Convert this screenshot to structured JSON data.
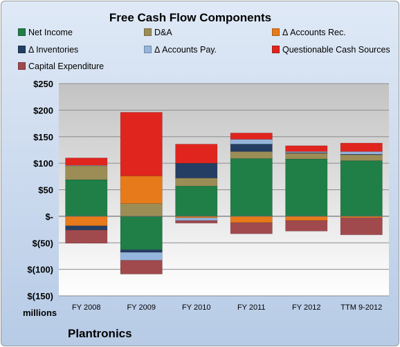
{
  "chart_data": {
    "type": "bar",
    "stacked": true,
    "title": "Free Cash Flow Components",
    "categories": [
      "FY 2008",
      "FY 2009",
      "FY 2010",
      "FY 2011",
      "FY 2012",
      "TTM 9-2012"
    ],
    "y_tick_labels": [
      "$250",
      "$200",
      "$150",
      "$100",
      "$50",
      "$-",
      "$(50)",
      "$(100)",
      "$(150)"
    ],
    "ylim": [
      -150,
      250
    ],
    "y_ticks": [
      250,
      200,
      150,
      100,
      50,
      0,
      -50,
      -100,
      -150
    ],
    "units_label": "millions",
    "legend_position": "top",
    "grid": true,
    "series": [
      {
        "name": "Net Income",
        "color": "#1f7f47",
        "values": [
          69,
          -63,
          57,
          109,
          108,
          105
        ]
      },
      {
        "name": "D&A",
        "color": "#9c8d56",
        "values": [
          26,
          24,
          15,
          13,
          11,
          11
        ]
      },
      {
        "name": "Δ Accounts Rec.",
        "color": "#e77a1a",
        "values": [
          -18,
          52,
          -3,
          -12,
          -8,
          -3
        ]
      },
      {
        "name": "Δ Inventories",
        "color": "#243e63",
        "values": [
          -8,
          -5,
          28,
          14,
          1,
          1
        ]
      },
      {
        "name": "Δ Accounts Pay.",
        "color": "#96b5dc",
        "values": [
          1,
          -15,
          -5,
          9,
          2,
          5
        ]
      },
      {
        "name": "Questionable Cash Sources",
        "color": "#e0251f",
        "values": [
          14,
          120,
          36,
          12,
          11,
          16
        ]
      },
      {
        "name": "Capital Expenditure",
        "color": "#a04a4e",
        "values": [
          -25,
          -26,
          -5,
          -21,
          -20,
          -32
        ]
      }
    ]
  },
  "footer": {
    "company": "Plantronics"
  }
}
